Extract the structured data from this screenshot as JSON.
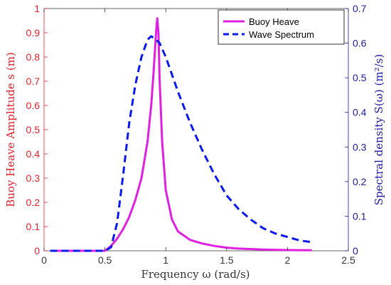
{
  "chart_data": {
    "type": "line",
    "title": "",
    "xlabel": "Frequency ω (rad/s)",
    "ylabel_left": "Buoy Heave Amplitude s (m)",
    "ylabel_right": "Spectral density S(ω) (m²/s)",
    "xlim": [
      0,
      2.5
    ],
    "ylim_left": [
      0,
      1
    ],
    "ylim_right": [
      0,
      0.7
    ],
    "xticks": [
      "0",
      "0.5",
      "1",
      "1.5",
      "2",
      "2.5"
    ],
    "yticks_left": [
      "0",
      "0.1",
      "0.2",
      "0.3",
      "0.4",
      "0.5",
      "0.6",
      "0.7",
      "0.8",
      "0.9",
      "1"
    ],
    "yticks_right": [
      "0",
      "0.1",
      "0.2",
      "0.3",
      "0.4",
      "0.5",
      "0.6",
      "0.7"
    ],
    "grid": false,
    "legend_position": "top-right",
    "colors": {
      "left_axis": "#e8202a",
      "right_axis": "#1a1aa8",
      "buoy_heave": "#e020e0",
      "wave_spectrum": "#0a1aee"
    },
    "series": [
      {
        "name": "Buoy Heave",
        "axis": "left",
        "style": "solid",
        "x": [
          0.05,
          0.3,
          0.5,
          0.55,
          0.6,
          0.65,
          0.7,
          0.75,
          0.8,
          0.85,
          0.88,
          0.9,
          0.92,
          0.93,
          0.94,
          0.95,
          0.97,
          1.0,
          1.05,
          1.1,
          1.2,
          1.3,
          1.4,
          1.5,
          1.6,
          1.8,
          2.0,
          2.2
        ],
        "y": [
          0.0,
          0.0,
          0.0,
          0.02,
          0.05,
          0.09,
          0.14,
          0.21,
          0.3,
          0.45,
          0.6,
          0.74,
          0.9,
          0.96,
          0.9,
          0.7,
          0.45,
          0.25,
          0.13,
          0.08,
          0.045,
          0.03,
          0.02,
          0.013,
          0.009,
          0.005,
          0.003,
          0.002
        ]
      },
      {
        "name": "Wave Spectrum",
        "axis": "right",
        "style": "dashed",
        "x": [
          0.05,
          0.3,
          0.5,
          0.55,
          0.6,
          0.65,
          0.7,
          0.75,
          0.8,
          0.85,
          0.88,
          0.92,
          0.95,
          1.0,
          1.1,
          1.2,
          1.3,
          1.4,
          1.5,
          1.6,
          1.7,
          1.8,
          1.9,
          2.0,
          2.1,
          2.2
        ],
        "y": [
          0.0,
          0.0,
          0.0,
          0.01,
          0.08,
          0.22,
          0.37,
          0.48,
          0.56,
          0.61,
          0.62,
          0.61,
          0.6,
          0.56,
          0.46,
          0.37,
          0.29,
          0.22,
          0.16,
          0.12,
          0.09,
          0.065,
          0.05,
          0.04,
          0.03,
          0.025
        ]
      }
    ]
  }
}
